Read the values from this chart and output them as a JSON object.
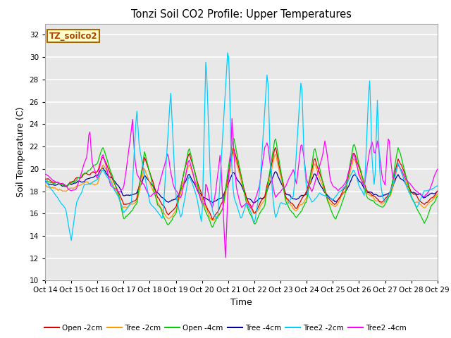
{
  "title": "Tonzi Soil CO2 Profile: Upper Temperatures",
  "xlabel": "Time",
  "ylabel": "Soil Temperature (C)",
  "ylim": [
    10,
    33
  ],
  "yticks": [
    10,
    12,
    14,
    16,
    18,
    20,
    22,
    24,
    26,
    28,
    30,
    32
  ],
  "x_labels": [
    "Oct 14",
    "Oct 15",
    "Oct 16",
    "Oct 17",
    "Oct 18",
    "Oct 19",
    "Oct 20",
    "Oct 21",
    "Oct 22",
    "Oct 23",
    "Oct 24",
    "Oct 25",
    "Oct 26",
    "Oct 27",
    "Oct 28",
    "Oct 29"
  ],
  "annotation_text": "TZ_soilco2",
  "annotation_color": "#aa4400",
  "annotation_bg": "#ffffcc",
  "annotation_border": "#aa6600",
  "series": {
    "Open_2cm": {
      "color": "#dd0000",
      "label": "Open -2cm"
    },
    "Tree_2cm": {
      "color": "#ff9900",
      "label": "Tree -2cm"
    },
    "Open_4cm": {
      "color": "#00cc00",
      "label": "Open -4cm"
    },
    "Tree_4cm": {
      "color": "#000099",
      "label": "Tree -4cm"
    },
    "Tree2_2cm": {
      "color": "#00ccff",
      "label": "Tree2 -2cm"
    },
    "Tree2_4cm": {
      "color": "#ff00ff",
      "label": "Tree2 -4cm"
    }
  }
}
